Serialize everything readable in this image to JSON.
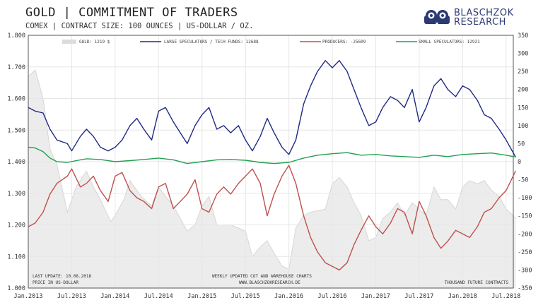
{
  "title": "GOLD | COMMITMENT OF TRADERS",
  "subtitle": "COMEX | CONTRACT SIZE: 100 OUNCES | US-DOLLAR / OZ.",
  "logo": {
    "line1": "BLASCHZOK",
    "line2": "RESEARCH"
  },
  "notes": {
    "last_update": "LAST UPDATE: 10.08.2018",
    "price_unit": "PRICE  IN  US-DOLLAR",
    "source_line1": "WEEKLY  UPDATED  COT  AND  WAREHOUSE  CHARTS",
    "source_line2": "WWW.BLASCHZOKRESEARCH.DE",
    "right_unit": "THOUSAND  FUTURE  CONTRACTS"
  },
  "colors": {
    "gold": "#d6d6d6",
    "large_speculators": "#1f2a85",
    "producers": "#c0504d",
    "small_speculators": "#22a050"
  },
  "chart_data": {
    "type": "line",
    "x_labels": [
      "Jan.2013",
      "Jul.2013",
      "Jan.2014",
      "Jul.2014",
      "Jan.2015",
      "Jul.2015",
      "Jan.2016",
      "Jul.2016",
      "Jan.2017",
      "Jul.2017",
      "Jan.2018",
      "Jul.2018"
    ],
    "x_range": [
      "2013-01",
      "2018-08"
    ],
    "left_axis": {
      "min": 1000,
      "max": 1800,
      "ticks": [
        "1.000",
        "1.100",
        "1.200",
        "1.300",
        "1.400",
        "1.500",
        "1.600",
        "1.700",
        "1.800"
      ]
    },
    "right_axis": {
      "min": -350,
      "max": 350,
      "ticks": [
        "350",
        "300",
        "250",
        "200",
        "150",
        "100",
        "50",
        "0",
        "-50",
        "-100",
        "-150",
        "-200",
        "-250",
        "-300",
        "-350"
      ]
    },
    "legend": [
      {
        "label": "GOLD: 1219 $"
      },
      {
        "label": "LARGE SPECULATORS / TECH FUNDS:  12688"
      },
      {
        "label": "PRODUCERS: -25609"
      },
      {
        "label": "SMALL SPECULATORS: 12921"
      }
    ],
    "series": [
      {
        "name": "GOLD",
        "axis": "left",
        "style": "area",
        "points": [
          [
            2013.0,
            1670
          ],
          [
            2013.08,
            1690
          ],
          [
            2013.17,
            1600
          ],
          [
            2013.25,
            1440
          ],
          [
            2013.33,
            1390
          ],
          [
            2013.45,
            1240
          ],
          [
            2013.55,
            1320
          ],
          [
            2013.67,
            1370
          ],
          [
            2013.75,
            1320
          ],
          [
            2013.83,
            1280
          ],
          [
            2013.95,
            1210
          ],
          [
            2014.0,
            1230
          ],
          [
            2014.1,
            1280
          ],
          [
            2014.17,
            1340
          ],
          [
            2014.3,
            1290
          ],
          [
            2014.42,
            1260
          ],
          [
            2014.5,
            1320
          ],
          [
            2014.58,
            1290
          ],
          [
            2014.67,
            1260
          ],
          [
            2014.75,
            1220
          ],
          [
            2014.83,
            1180
          ],
          [
            2014.92,
            1200
          ],
          [
            2015.0,
            1260
          ],
          [
            2015.08,
            1290
          ],
          [
            2015.17,
            1200
          ],
          [
            2015.33,
            1200
          ],
          [
            2015.42,
            1190
          ],
          [
            2015.5,
            1180
          ],
          [
            2015.58,
            1100
          ],
          [
            2015.67,
            1130
          ],
          [
            2015.75,
            1150
          ],
          [
            2015.83,
            1110
          ],
          [
            2015.92,
            1070
          ],
          [
            2016.0,
            1060
          ],
          [
            2016.08,
            1190
          ],
          [
            2016.17,
            1230
          ],
          [
            2016.25,
            1240
          ],
          [
            2016.42,
            1250
          ],
          [
            2016.5,
            1330
          ],
          [
            2016.58,
            1350
          ],
          [
            2016.67,
            1320
          ],
          [
            2016.75,
            1270
          ],
          [
            2016.83,
            1230
          ],
          [
            2016.92,
            1150
          ],
          [
            2017.0,
            1160
          ],
          [
            2017.08,
            1220
          ],
          [
            2017.17,
            1240
          ],
          [
            2017.25,
            1270
          ],
          [
            2017.33,
            1230
          ],
          [
            2017.42,
            1270
          ],
          [
            2017.5,
            1250
          ],
          [
            2017.58,
            1230
          ],
          [
            2017.67,
            1320
          ],
          [
            2017.75,
            1280
          ],
          [
            2017.83,
            1280
          ],
          [
            2017.92,
            1250
          ],
          [
            2018.0,
            1320
          ],
          [
            2018.08,
            1340
          ],
          [
            2018.17,
            1330
          ],
          [
            2018.25,
            1340
          ],
          [
            2018.33,
            1310
          ],
          [
            2018.42,
            1290
          ],
          [
            2018.5,
            1250
          ],
          [
            2018.58,
            1230
          ],
          [
            2018.61,
            1219
          ]
        ]
      },
      {
        "name": "LARGE SPECULATORS / TECH FUNDS",
        "axis": "right",
        "style": "line",
        "points": [
          [
            2013.0,
            150
          ],
          [
            2013.08,
            140
          ],
          [
            2013.17,
            135
          ],
          [
            2013.25,
            90
          ],
          [
            2013.33,
            60
          ],
          [
            2013.45,
            50
          ],
          [
            2013.5,
            30
          ],
          [
            2013.6,
            70
          ],
          [
            2013.67,
            90
          ],
          [
            2013.75,
            70
          ],
          [
            2013.83,
            40
          ],
          [
            2013.92,
            30
          ],
          [
            2014.0,
            40
          ],
          [
            2014.08,
            60
          ],
          [
            2014.17,
            100
          ],
          [
            2014.25,
            120
          ],
          [
            2014.33,
            90
          ],
          [
            2014.42,
            60
          ],
          [
            2014.5,
            140
          ],
          [
            2014.58,
            150
          ],
          [
            2014.67,
            110
          ],
          [
            2014.75,
            80
          ],
          [
            2014.83,
            50
          ],
          [
            2014.92,
            100
          ],
          [
            2015.0,
            130
          ],
          [
            2015.08,
            150
          ],
          [
            2015.17,
            90
          ],
          [
            2015.25,
            100
          ],
          [
            2015.33,
            80
          ],
          [
            2015.42,
            100
          ],
          [
            2015.5,
            60
          ],
          [
            2015.58,
            30
          ],
          [
            2015.67,
            70
          ],
          [
            2015.75,
            120
          ],
          [
            2015.83,
            80
          ],
          [
            2015.92,
            40
          ],
          [
            2016.0,
            20
          ],
          [
            2016.08,
            60
          ],
          [
            2016.17,
            160
          ],
          [
            2016.25,
            210
          ],
          [
            2016.33,
            250
          ],
          [
            2016.42,
            280
          ],
          [
            2016.5,
            260
          ],
          [
            2016.58,
            280
          ],
          [
            2016.67,
            250
          ],
          [
            2016.75,
            200
          ],
          [
            2016.83,
            150
          ],
          [
            2016.92,
            100
          ],
          [
            2017.0,
            110
          ],
          [
            2017.08,
            150
          ],
          [
            2017.17,
            180
          ],
          [
            2017.25,
            170
          ],
          [
            2017.33,
            150
          ],
          [
            2017.42,
            200
          ],
          [
            2017.5,
            110
          ],
          [
            2017.58,
            150
          ],
          [
            2017.67,
            210
          ],
          [
            2017.75,
            230
          ],
          [
            2017.83,
            200
          ],
          [
            2017.92,
            180
          ],
          [
            2018.0,
            210
          ],
          [
            2018.08,
            200
          ],
          [
            2018.17,
            170
          ],
          [
            2018.25,
            130
          ],
          [
            2018.33,
            120
          ],
          [
            2018.42,
            90
          ],
          [
            2018.5,
            60
          ],
          [
            2018.61,
            12.7
          ]
        ]
      },
      {
        "name": "PRODUCERS",
        "axis": "right",
        "style": "line",
        "points": [
          [
            2013.0,
            -180
          ],
          [
            2013.08,
            -170
          ],
          [
            2013.17,
            -140
          ],
          [
            2013.25,
            -90
          ],
          [
            2013.33,
            -60
          ],
          [
            2013.45,
            -40
          ],
          [
            2013.5,
            -20
          ],
          [
            2013.6,
            -70
          ],
          [
            2013.67,
            -60
          ],
          [
            2013.75,
            -40
          ],
          [
            2013.83,
            -80
          ],
          [
            2013.92,
            -110
          ],
          [
            2014.0,
            -40
          ],
          [
            2014.08,
            -30
          ],
          [
            2014.17,
            -80
          ],
          [
            2014.25,
            -100
          ],
          [
            2014.33,
            -110
          ],
          [
            2014.42,
            -130
          ],
          [
            2014.5,
            -70
          ],
          [
            2014.58,
            -60
          ],
          [
            2014.67,
            -130
          ],
          [
            2014.75,
            -110
          ],
          [
            2014.83,
            -90
          ],
          [
            2014.92,
            -50
          ],
          [
            2015.0,
            -130
          ],
          [
            2015.08,
            -140
          ],
          [
            2015.17,
            -90
          ],
          [
            2015.25,
            -70
          ],
          [
            2015.33,
            -90
          ],
          [
            2015.42,
            -60
          ],
          [
            2015.5,
            -40
          ],
          [
            2015.58,
            -20
          ],
          [
            2015.67,
            -60
          ],
          [
            2015.75,
            -150
          ],
          [
            2015.83,
            -90
          ],
          [
            2015.92,
            -40
          ],
          [
            2016.0,
            -10
          ],
          [
            2016.08,
            -60
          ],
          [
            2016.17,
            -150
          ],
          [
            2016.25,
            -210
          ],
          [
            2016.33,
            -250
          ],
          [
            2016.42,
            -280
          ],
          [
            2016.5,
            -290
          ],
          [
            2016.58,
            -300
          ],
          [
            2016.67,
            -280
          ],
          [
            2016.75,
            -230
          ],
          [
            2016.83,
            -190
          ],
          [
            2016.92,
            -150
          ],
          [
            2017.0,
            -180
          ],
          [
            2017.08,
            -200
          ],
          [
            2017.17,
            -170
          ],
          [
            2017.25,
            -130
          ],
          [
            2017.33,
            -140
          ],
          [
            2017.42,
            -200
          ],
          [
            2017.5,
            -110
          ],
          [
            2017.58,
            -150
          ],
          [
            2017.67,
            -210
          ],
          [
            2017.75,
            -240
          ],
          [
            2017.83,
            -220
          ],
          [
            2017.92,
            -190
          ],
          [
            2018.0,
            -200
          ],
          [
            2018.08,
            -210
          ],
          [
            2018.17,
            -180
          ],
          [
            2018.25,
            -140
          ],
          [
            2018.33,
            -130
          ],
          [
            2018.42,
            -100
          ],
          [
            2018.5,
            -80
          ],
          [
            2018.61,
            -25.6
          ]
        ]
      },
      {
        "name": "SMALL SPECULATORS",
        "axis": "right",
        "style": "line",
        "points": [
          [
            2013.0,
            40
          ],
          [
            2013.08,
            38
          ],
          [
            2013.17,
            28
          ],
          [
            2013.25,
            10
          ],
          [
            2013.33,
            0
          ],
          [
            2013.45,
            -2
          ],
          [
            2013.6,
            5
          ],
          [
            2013.67,
            8
          ],
          [
            2013.83,
            6
          ],
          [
            2014.0,
            0
          ],
          [
            2014.17,
            3
          ],
          [
            2014.33,
            6
          ],
          [
            2014.5,
            10
          ],
          [
            2014.67,
            5
          ],
          [
            2014.83,
            -5
          ],
          [
            2015.0,
            0
          ],
          [
            2015.17,
            5
          ],
          [
            2015.33,
            6
          ],
          [
            2015.5,
            4
          ],
          [
            2015.67,
            -2
          ],
          [
            2015.83,
            -5
          ],
          [
            2016.0,
            -2
          ],
          [
            2016.17,
            10
          ],
          [
            2016.33,
            18
          ],
          [
            2016.5,
            22
          ],
          [
            2016.67,
            25
          ],
          [
            2016.83,
            18
          ],
          [
            2017.0,
            20
          ],
          [
            2017.17,
            16
          ],
          [
            2017.33,
            14
          ],
          [
            2017.5,
            12
          ],
          [
            2017.67,
            18
          ],
          [
            2017.83,
            14
          ],
          [
            2018.0,
            20
          ],
          [
            2018.17,
            22
          ],
          [
            2018.33,
            24
          ],
          [
            2018.5,
            18
          ],
          [
            2018.61,
            12.9
          ]
        ]
      }
    ]
  }
}
